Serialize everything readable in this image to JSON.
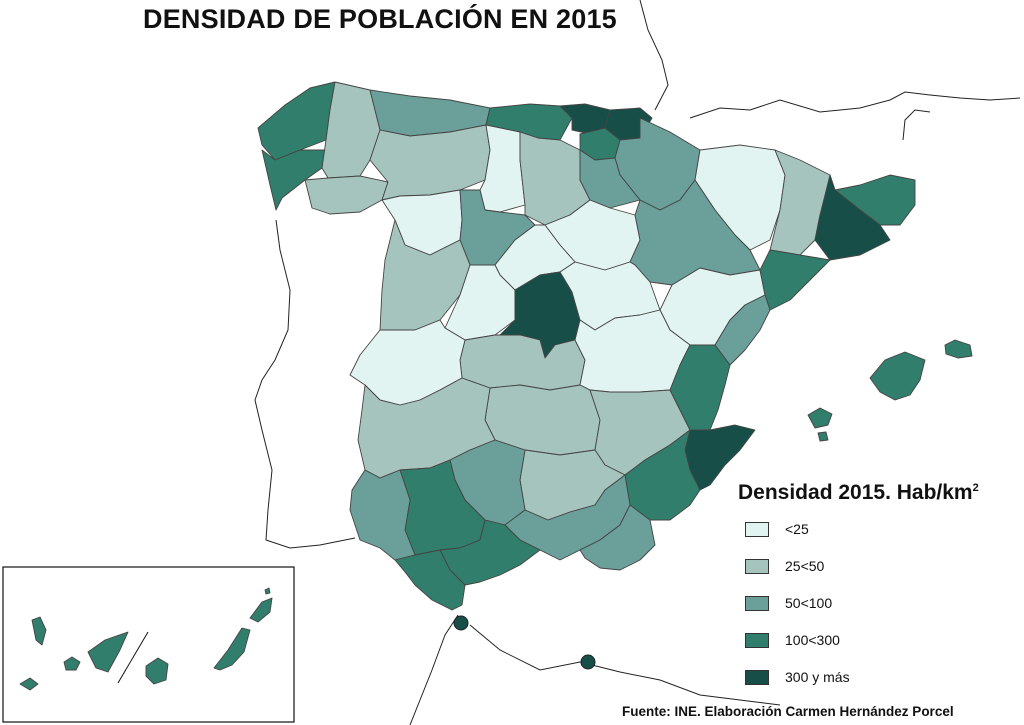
{
  "title": "DENSIDAD DE POBLACIÓN EN 2015",
  "legend": {
    "title": "Densidad 2015. Hab/km",
    "title_superscript": "2",
    "items": [
      {
        "label": "<25",
        "color": "#e2f4f1"
      },
      {
        "label": "25<50",
        "color": "#a6c4be"
      },
      {
        "label": "50<100",
        "color": "#6a9f9a"
      },
      {
        "label": "100<300",
        "color": "#327e6c"
      },
      {
        "label": "300 y más",
        "color": "#174f48"
      }
    ]
  },
  "source": "Fuente: INE. Elaboración Carmen Hernández Porcel"
}
